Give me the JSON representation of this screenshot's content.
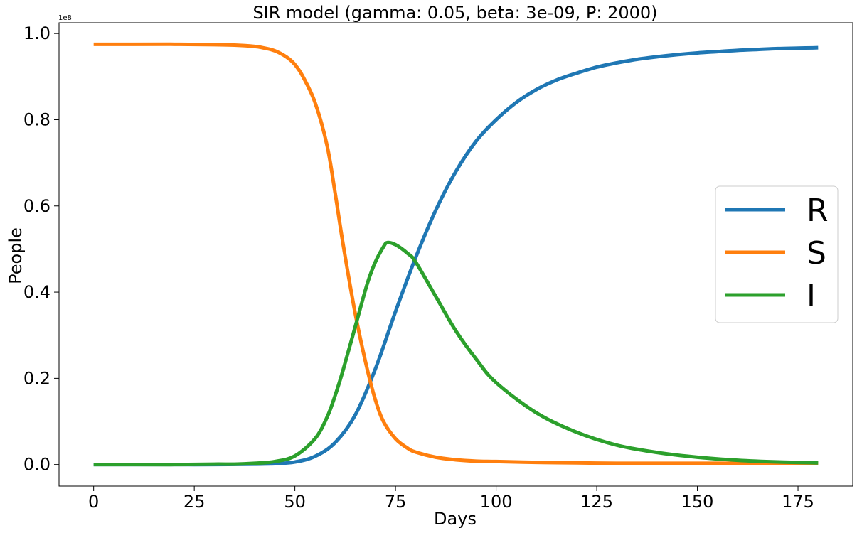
{
  "chart_data": {
    "type": "line",
    "title": "SIR model (gamma: 0.05, beta: 3e-09, P: 2000)",
    "xlabel": "Days",
    "ylabel": "People",
    "y_offset_label": "1e8",
    "xlim": [
      -8.6,
      188.6
    ],
    "ylim": [
      -0.05,
      1.025
    ],
    "x_ticks": [
      0,
      25,
      50,
      75,
      100,
      125,
      150,
      175
    ],
    "x_tick_labels": [
      "0",
      "25",
      "50",
      "75",
      "100",
      "125",
      "150",
      "175"
    ],
    "y_ticks": [
      0.0,
      0.2,
      0.4,
      0.6,
      0.8,
      1.0
    ],
    "y_tick_labels": [
      "0.0",
      "0.2",
      "0.4",
      "0.6",
      "0.8",
      "1.0"
    ],
    "grid": false,
    "legend_position": "center-right",
    "series": [
      {
        "name": "R",
        "color": "#1f77b4",
        "x": [
          0,
          10,
          20,
          30,
          40,
          45,
          50,
          55,
          60,
          65,
          70,
          75,
          80,
          85,
          90,
          95,
          100,
          105,
          110,
          115,
          120,
          125,
          130,
          135,
          140,
          145,
          150,
          155,
          160,
          165,
          170,
          175,
          180
        ],
        "values": [
          0.0,
          0.0,
          0.0,
          0.0,
          0.001,
          0.002,
          0.006,
          0.019,
          0.051,
          0.115,
          0.222,
          0.355,
          0.48,
          0.59,
          0.68,
          0.75,
          0.8,
          0.84,
          0.87,
          0.892,
          0.908,
          0.922,
          0.932,
          0.94,
          0.946,
          0.951,
          0.955,
          0.958,
          0.961,
          0.963,
          0.965,
          0.966,
          0.967
        ]
      },
      {
        "name": "S",
        "color": "#ff7f0e",
        "x": [
          0,
          10,
          20,
          30,
          35,
          40,
          42,
          45,
          48,
          50,
          52,
          55,
          58,
          60,
          62,
          65,
          68,
          70,
          72,
          75,
          78,
          80,
          85,
          90,
          95,
          100,
          110,
          120,
          130,
          140,
          150,
          160,
          170,
          180
        ],
        "values": [
          0.975,
          0.975,
          0.975,
          0.974,
          0.973,
          0.97,
          0.967,
          0.96,
          0.945,
          0.928,
          0.9,
          0.84,
          0.74,
          0.63,
          0.51,
          0.35,
          0.22,
          0.15,
          0.1,
          0.06,
          0.038,
          0.029,
          0.017,
          0.011,
          0.008,
          0.007,
          0.005,
          0.004,
          0.003,
          0.003,
          0.003,
          0.003,
          0.003,
          0.003
        ]
      },
      {
        "name": "I",
        "color": "#2ca02c",
        "x": [
          0,
          10,
          20,
          30,
          35,
          40,
          45,
          50,
          55,
          58,
          60,
          62,
          65,
          68,
          70,
          72,
          73,
          75,
          78,
          80,
          85,
          90,
          95,
          100,
          110,
          120,
          130,
          140,
          150,
          160,
          170,
          180
        ],
        "values": [
          0.0,
          0.0,
          0.0,
          0.001,
          0.001,
          0.003,
          0.007,
          0.02,
          0.06,
          0.11,
          0.16,
          0.22,
          0.32,
          0.42,
          0.47,
          0.505,
          0.515,
          0.51,
          0.49,
          0.47,
          0.39,
          0.31,
          0.245,
          0.19,
          0.12,
          0.075,
          0.045,
          0.028,
          0.017,
          0.01,
          0.006,
          0.004
        ]
      }
    ]
  }
}
